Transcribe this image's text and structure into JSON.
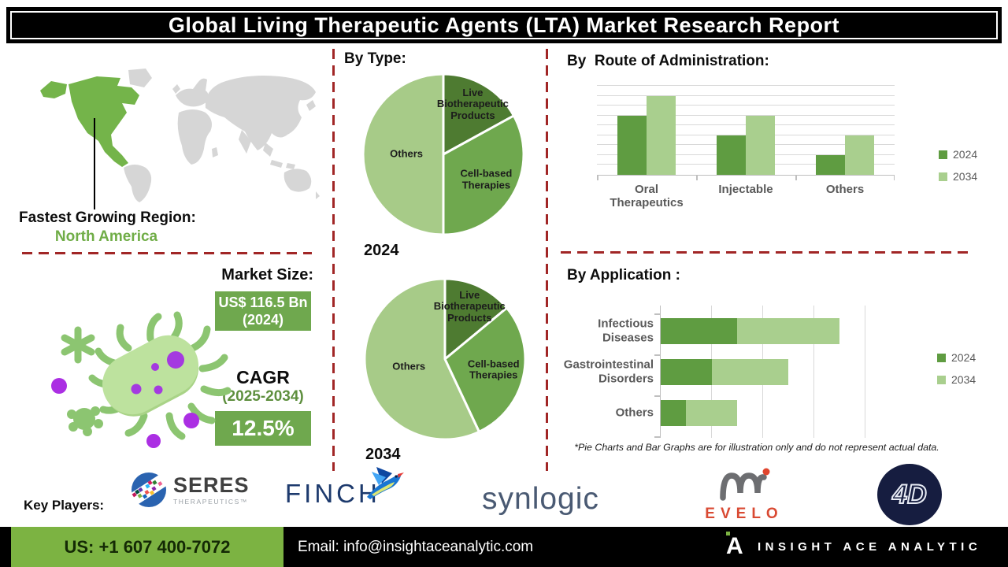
{
  "title": "Global Living Therapeutic Agents (LTA) Market Research Report",
  "colors": {
    "pie_dark": "#4e7b31",
    "pie_mid": "#6fa84e",
    "pie_light": "#a7cb88",
    "bar_2024": "#5f9c41",
    "bar_2034": "#a9cf8e",
    "accent_green": "#70ad47",
    "divider_red": "#a12626",
    "footer_green": "#7cb342",
    "map_gray": "#d6d6d6",
    "map_highlight": "#74b44a"
  },
  "region": {
    "heading": "Fastest Growing Region:",
    "value": "North America"
  },
  "by_type": {
    "heading": "By Type:",
    "pies": [
      {
        "year": "2024",
        "chart": 0
      },
      {
        "year": "2034",
        "chart": 1
      }
    ]
  },
  "route": {
    "heading": "By  Route of Administration:"
  },
  "application": {
    "heading": "By Application :"
  },
  "footnote": "*Pie Charts and Bar Graphs are for illustration only and do not represent actual data.",
  "market": {
    "heading": "Market Size:",
    "size_value": "US$ 116.5 Bn",
    "size_year": "(2024)",
    "cagr_label": "CAGR",
    "cagr_period": "(2025-2034)",
    "cagr_value": "12.5%"
  },
  "key_players": {
    "label": "Key Players:",
    "seres": {
      "name": "SERES",
      "sub": "THERAPEUTICS™"
    },
    "finch": {
      "name": "FINCH"
    },
    "synlogic": {
      "name": "synlogic"
    },
    "evelo": {
      "name": "EVELO"
    },
    "fourd": {
      "name": "4D"
    }
  },
  "footer": {
    "phone": "US: +1 607 400-7072",
    "email": "Email: info@insightaceanalytic.com",
    "brand": "INSIGHT ACE ANALYTIC"
  },
  "chart_data": [
    {
      "type": "pie",
      "title": "By Type — 2024",
      "labels": [
        "Live Biotherapeutic Products",
        "Cell-based Therapies",
        "Others"
      ],
      "values": [
        17,
        33,
        50
      ],
      "unit": "percent (illustrative)"
    },
    {
      "type": "pie",
      "title": "By Type — 2034",
      "labels": [
        "Live Biotherapeutic Products",
        "Cell-based Therapies",
        "Others"
      ],
      "values": [
        14,
        29,
        57
      ],
      "unit": "percent (illustrative)"
    },
    {
      "type": "bar",
      "title": "By Route of Administration",
      "categories": [
        "Oral Therapeutics",
        "Injectable",
        "Others"
      ],
      "series": [
        {
          "name": "2024",
          "values": [
            6,
            4,
            2
          ]
        },
        {
          "name": "2034",
          "values": [
            8,
            6,
            4
          ]
        }
      ],
      "ylim": [
        0,
        9
      ],
      "grid": true,
      "legend_position": "right",
      "note": "illustrative relative heights"
    },
    {
      "type": "bar",
      "orientation": "horizontal",
      "stacked": true,
      "title": "By Application",
      "categories": [
        "Infectious Diseases",
        "Gastrointestinal Disorders",
        "Others"
      ],
      "series": [
        {
          "name": "2024",
          "values": [
            1.5,
            1,
            0.5
          ]
        },
        {
          "name": "2034",
          "values": [
            2,
            1.5,
            1
          ]
        }
      ],
      "xlim": [
        0,
        4.5
      ],
      "grid": true,
      "legend_position": "right",
      "note": "illustrative relative lengths"
    }
  ]
}
